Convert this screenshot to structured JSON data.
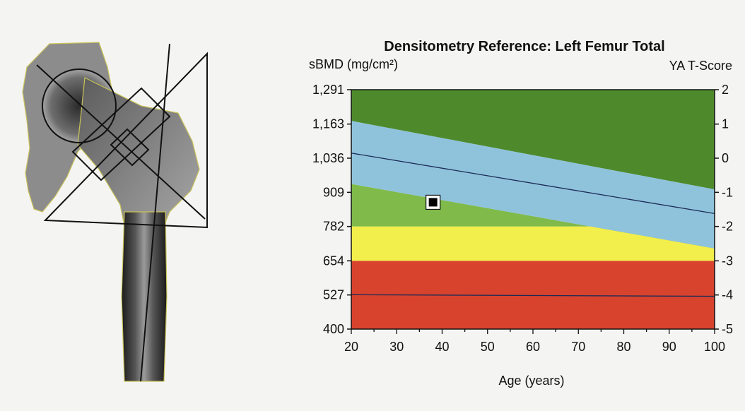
{
  "chart_data": {
    "type": "area",
    "title": "Densitometry Reference: Left Femur Total",
    "ylabel": "sBMD (mg/cm²)",
    "ylabel_right": "YA T-Score",
    "xlabel": "Age (years)",
    "xlim": [
      20,
      100
    ],
    "ylim": [
      400,
      1291
    ],
    "x_ticks": [
      "20",
      "30",
      "40",
      "50",
      "60",
      "70",
      "80",
      "90",
      "100"
    ],
    "y_ticks": [
      "1,291",
      "1,163",
      "1,036",
      "909",
      "782",
      "654",
      "527",
      "400"
    ],
    "y_tick_values": [
      1291,
      1163,
      1036,
      909,
      782,
      654,
      527,
      400
    ],
    "t_score_ticks": [
      "2",
      "1",
      "0",
      "-1",
      "-2",
      "-3",
      "-4",
      "-5"
    ],
    "t_score_values": [
      2,
      1,
      0,
      -1,
      -2,
      -3,
      -4,
      -5
    ],
    "t_score_bmd": [
      1291,
      1163,
      1036,
      909,
      782,
      654,
      527,
      400
    ],
    "bands": [
      {
        "name": "red",
        "color": "#d8432e",
        "upper": [
          [
            20,
            654
          ],
          [
            100,
            654
          ]
        ],
        "lower": [
          [
            20,
            400
          ],
          [
            100,
            400
          ]
        ]
      },
      {
        "name": "yellow",
        "color": "#f2ee4c",
        "upper": [
          [
            20,
            782
          ],
          [
            80,
            782
          ],
          [
            100,
            700
          ]
        ],
        "lower": [
          [
            20,
            654
          ],
          [
            100,
            654
          ]
        ]
      },
      {
        "name": "light-green",
        "color": "#7fba4a",
        "upper": [
          [
            20,
            940
          ],
          [
            100,
            700
          ]
        ],
        "lower": [
          [
            20,
            782
          ],
          [
            80,
            782
          ],
          [
            100,
            700
          ]
        ]
      },
      {
        "name": "blue",
        "color": "#8fc3dc",
        "upper": [
          [
            20,
            1175
          ],
          [
            100,
            920
          ]
        ],
        "lower": [
          [
            20,
            940
          ],
          [
            100,
            700
          ]
        ]
      },
      {
        "name": "dark-green",
        "color": "#4e8a2c",
        "upper": [
          [
            20,
            1291
          ],
          [
            100,
            1291
          ]
        ],
        "lower": [
          [
            20,
            1175
          ],
          [
            100,
            920
          ]
        ]
      }
    ],
    "reference_lines": [
      {
        "name": "mean-line",
        "points": [
          [
            20,
            1055
          ],
          [
            100,
            830
          ]
        ]
      },
      {
        "name": "minus-four-sd-line",
        "points": [
          [
            20,
            528
          ],
          [
            100,
            522
          ]
        ]
      }
    ],
    "patient_point": {
      "x": 38,
      "y": 872
    }
  }
}
